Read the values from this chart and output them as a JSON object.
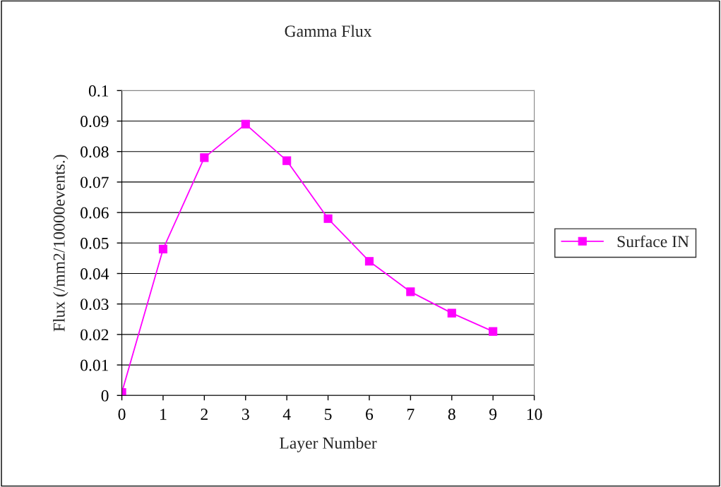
{
  "chart_data": {
    "type": "line",
    "title": "Gamma Flux",
    "xlabel": "Layer Number",
    "ylabel": "Flux (/mm2/10000events.)",
    "x": [
      0,
      1,
      2,
      3,
      4,
      5,
      6,
      7,
      8,
      9
    ],
    "series": [
      {
        "name": "Surface IN",
        "color": "#ff00ff",
        "values": [
          0.001,
          0.048,
          0.078,
          0.089,
          0.077,
          0.058,
          0.044,
          0.034,
          0.027,
          0.021
        ]
      }
    ],
    "xlim": [
      0,
      10
    ],
    "xticks": [
      0,
      1,
      2,
      3,
      4,
      5,
      6,
      7,
      8,
      9,
      10
    ],
    "ylim": [
      0,
      0.1
    ],
    "yticks": [
      0,
      0.01,
      0.02,
      0.03,
      0.04,
      0.05,
      0.06,
      0.07,
      0.08,
      0.09,
      0.1
    ],
    "grid": "y",
    "legend": "right",
    "marker": "square",
    "line_style": "solid"
  }
}
